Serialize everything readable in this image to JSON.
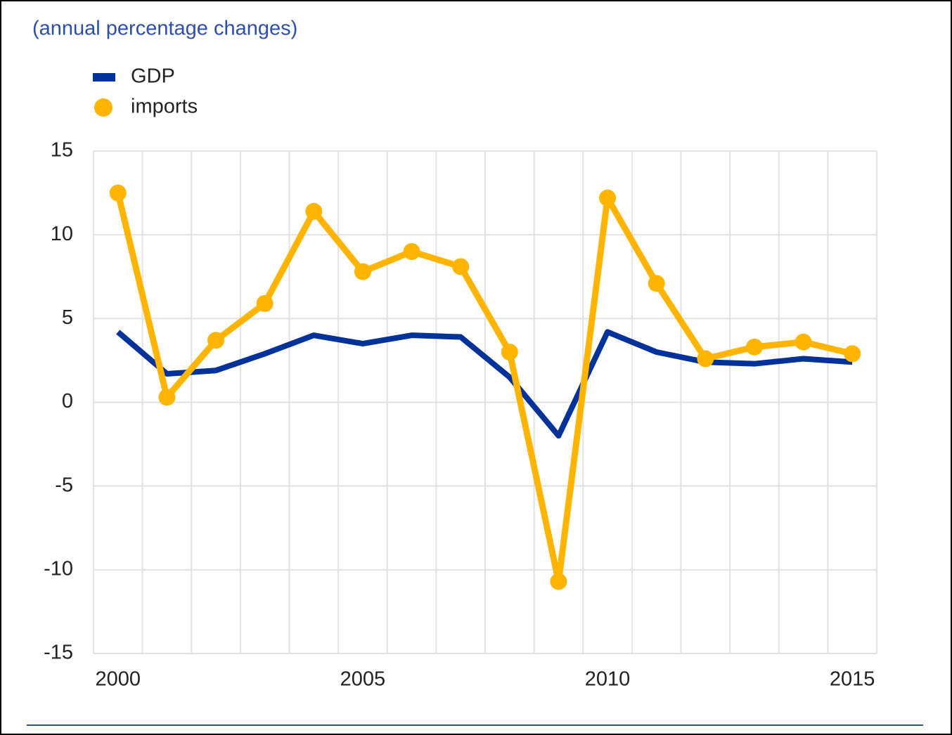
{
  "chart_data": {
    "type": "line",
    "subtitle": "(annual percentage changes)",
    "x": [
      2000,
      2001,
      2002,
      2003,
      2004,
      2005,
      2006,
      2007,
      2008,
      2009,
      2010,
      2011,
      2012,
      2013,
      2014,
      2015
    ],
    "series": [
      {
        "name": "GDP",
        "color": "#003299",
        "values": [
          4.2,
          1.7,
          1.9,
          2.9,
          4.0,
          3.5,
          4.0,
          3.9,
          1.5,
          -2.0,
          4.2,
          3.0,
          2.4,
          2.3,
          2.6,
          2.4
        ]
      },
      {
        "name": "imports",
        "color": "#ffb400",
        "values": [
          12.5,
          0.3,
          3.7,
          5.9,
          11.4,
          7.8,
          9.0,
          8.1,
          3.0,
          -10.7,
          12.2,
          7.1,
          2.6,
          3.3,
          3.6,
          2.9
        ]
      }
    ],
    "xlim": [
      1999.5,
      2015.5
    ],
    "xticks": [
      2000,
      2005,
      2010,
      2015
    ],
    "ylim": [
      -15,
      15
    ],
    "yticks": [
      -15,
      -10,
      -5,
      0,
      5,
      10,
      15
    ],
    "grid": true
  }
}
